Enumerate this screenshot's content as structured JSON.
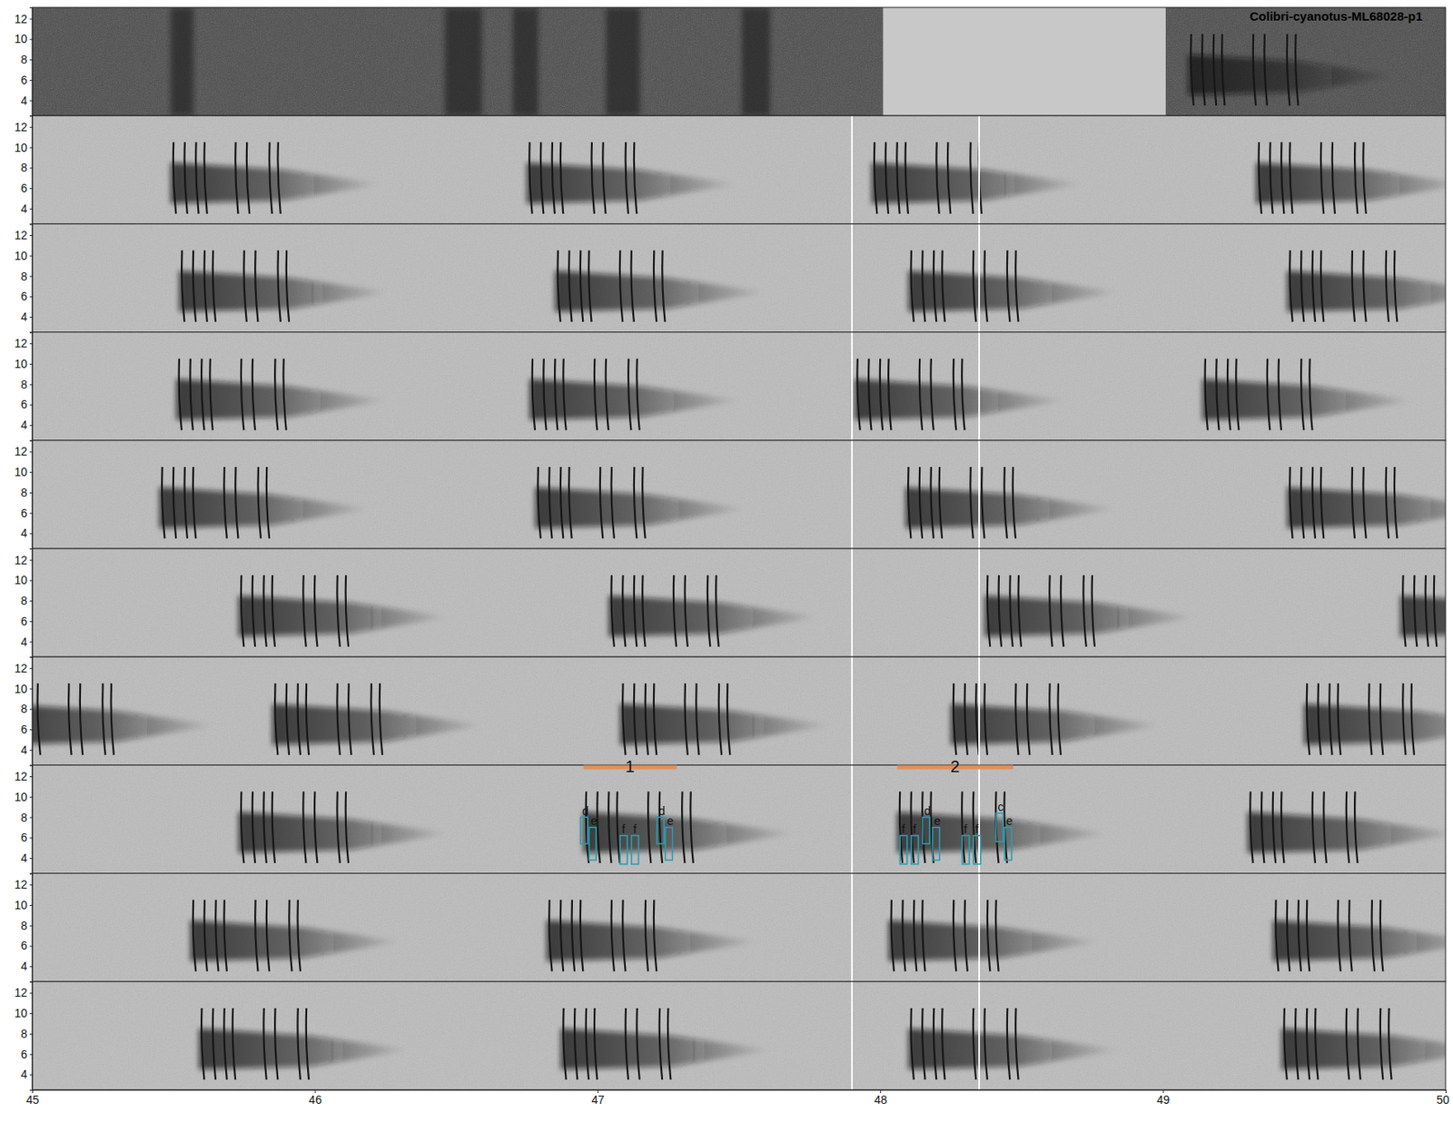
{
  "chart_data": {
    "type": "spectrogram",
    "title": "Colibri-cyanotus-ML68028-p1",
    "xlim": [
      45,
      50
    ],
    "xticks": [
      45,
      46,
      47,
      48,
      49,
      50
    ],
    "ylim": [
      2.5,
      13.1
    ],
    "yticks": [
      4,
      6,
      8,
      10,
      12
    ],
    "note_offsets": [
      0.01,
      0.05,
      0.09,
      0.12,
      0.23,
      0.27,
      0.35,
      0.38
    ],
    "note_freq": [
      3.5,
      10.5
    ],
    "panels": [
      {
        "songs": [
          49.09
        ],
        "gap": [
          48.01,
          49.01
        ],
        "noise": [
          [
            45.49,
            45.57
          ],
          [
            46.46,
            46.59
          ],
          [
            46.7,
            46.79
          ],
          [
            47.03,
            47.15
          ],
          [
            47.51,
            47.61
          ]
        ]
      },
      {
        "songs": [
          45.49,
          46.75,
          47.97,
          49.33
        ],
        "cursors": [
          47.9,
          48.35
        ]
      },
      {
        "songs": [
          45.52,
          46.85,
          48.1,
          49.44
        ],
        "cursors": [
          47.9,
          48.35
        ]
      },
      {
        "songs": [
          45.51,
          46.76,
          47.91,
          49.14
        ],
        "cursors": [
          47.9,
          48.35
        ]
      },
      {
        "songs": [
          45.45,
          46.78,
          48.09,
          49.44
        ],
        "cursors": [
          47.9,
          48.35
        ]
      },
      {
        "songs": [
          45.73,
          47.04,
          48.37,
          49.84
        ],
        "cursors": [
          47.9,
          48.35
        ]
      },
      {
        "songs": [
          44.9,
          45.85,
          47.08,
          48.25,
          49.5
        ],
        "cursors": [
          47.9,
          48.35
        ]
      },
      {
        "songs": [
          45.73,
          46.95,
          48.06,
          49.3
        ],
        "cursors": [
          47.9,
          48.35
        ]
      },
      {
        "songs": [
          45.56,
          46.82,
          48.03,
          49.39
        ],
        "cursors": [
          47.9,
          48.35
        ]
      },
      {
        "songs": [
          45.59,
          46.87,
          48.1,
          49.42
        ],
        "cursors": [
          47.9,
          48.35
        ]
      }
    ],
    "annotations": {
      "panel": 7,
      "segments": [
        {
          "label": "1",
          "t0": 46.95,
          "t1": 47.28,
          "freq": 12.9,
          "color": "#e0915a"
        },
        {
          "label": "2",
          "t0": 48.06,
          "t1": 48.47,
          "freq": 12.9,
          "color": "#e0915a"
        }
      ],
      "syllables": [
        {
          "label": "d",
          "t0": 46.94,
          "t1": 46.965,
          "fmin": 5.4,
          "fmax": 8.0,
          "color": "#2a9db0"
        },
        {
          "label": "e",
          "t0": 46.97,
          "t1": 46.995,
          "fmin": 3.8,
          "fmax": 7.0,
          "color": "#2a9db0"
        },
        {
          "label": "f",
          "t0": 47.08,
          "t1": 47.105,
          "fmin": 3.4,
          "fmax": 6.2,
          "color": "#2a9db0"
        },
        {
          "label": "f",
          "t0": 47.12,
          "t1": 47.145,
          "fmin": 3.4,
          "fmax": 6.2,
          "color": "#2a9db0"
        },
        {
          "label": "d",
          "t0": 47.21,
          "t1": 47.235,
          "fmin": 5.4,
          "fmax": 8.0,
          "color": "#2a9db0"
        },
        {
          "label": "e",
          "t0": 47.24,
          "t1": 47.265,
          "fmin": 3.8,
          "fmax": 7.0,
          "color": "#2a9db0"
        },
        {
          "label": "f",
          "t0": 48.07,
          "t1": 48.095,
          "fmin": 3.4,
          "fmax": 6.2,
          "color": "#2a9db0"
        },
        {
          "label": "f",
          "t0": 48.11,
          "t1": 48.135,
          "fmin": 3.4,
          "fmax": 6.2,
          "color": "#2a9db0"
        },
        {
          "label": "d",
          "t0": 48.15,
          "t1": 48.175,
          "fmin": 5.4,
          "fmax": 8.0,
          "color": "#2a9db0"
        },
        {
          "label": "e",
          "t0": 48.185,
          "t1": 48.21,
          "fmin": 3.8,
          "fmax": 7.0,
          "color": "#2a9db0"
        },
        {
          "label": "f",
          "t0": 48.29,
          "t1": 48.315,
          "fmin": 3.4,
          "fmax": 6.2,
          "color": "#2a9db0"
        },
        {
          "label": "f",
          "t0": 48.33,
          "t1": 48.355,
          "fmin": 3.4,
          "fmax": 6.2,
          "color": "#2a9db0"
        },
        {
          "label": "c",
          "t0": 48.41,
          "t1": 48.435,
          "fmin": 5.6,
          "fmax": 8.4,
          "color": "#2a9db0"
        },
        {
          "label": "e",
          "t0": 48.44,
          "t1": 48.465,
          "fmin": 3.8,
          "fmax": 7.0,
          "color": "#2a9db0"
        }
      ]
    }
  }
}
